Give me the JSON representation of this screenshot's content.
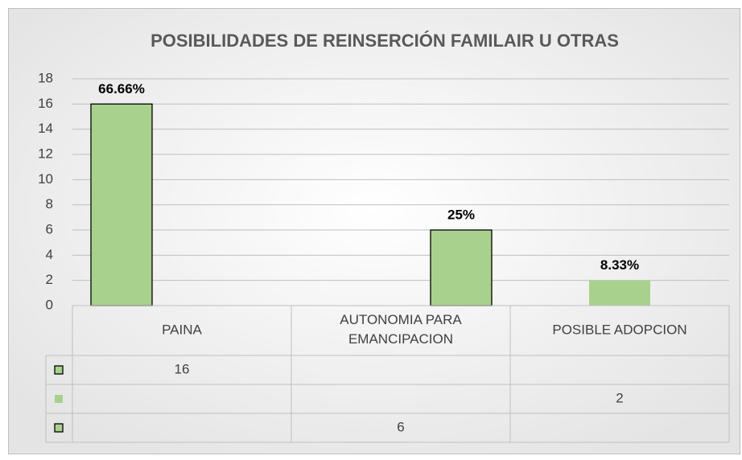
{
  "chart_data": {
    "type": "bar",
    "title": "POSIBILIDADES DE REINSERCIÓN FAMILAIR U OTRAS",
    "categories": [
      "PAINA",
      "AUTONOMIA PARA EMANCIPACION",
      "POSIBLE ADOPCION"
    ],
    "series": [
      {
        "color": "#a9d18e",
        "outline": true,
        "values": [
          16,
          null,
          null
        ]
      },
      {
        "color": "#a9d18e",
        "outline": false,
        "values": [
          null,
          null,
          2
        ]
      },
      {
        "color": "#a9d18e",
        "outline": true,
        "values": [
          null,
          6,
          null
        ]
      }
    ],
    "annotations": [
      "66.66%",
      "25%",
      "8.33%"
    ],
    "ylim": [
      0,
      18
    ],
    "yticks": [
      0,
      2,
      4,
      6,
      8,
      10,
      12,
      14,
      16,
      18
    ],
    "grid": true,
    "data_table": true
  }
}
